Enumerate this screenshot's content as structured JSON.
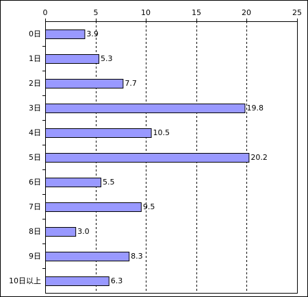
{
  "chart_data": {
    "type": "bar",
    "orientation": "horizontal",
    "categories": [
      "0日",
      "1日",
      "2日",
      "3日",
      "4日",
      "5日",
      "6日",
      "7日",
      "8日",
      "9日",
      "10日以上"
    ],
    "values": [
      3.9,
      5.3,
      7.7,
      19.8,
      10.5,
      20.2,
      5.5,
      9.5,
      3.0,
      8.3,
      6.3
    ],
    "value_labels": [
      "3.9",
      "5.3",
      "7.7",
      "19.8",
      "10.5",
      "20.2",
      "5.5",
      "9.5",
      "3.0",
      "8.3",
      "6.3"
    ],
    "xticks": [
      "0",
      "5",
      "10",
      "15",
      "20",
      "25"
    ],
    "xlim": [
      0,
      25
    ],
    "title": "",
    "xlabel": "",
    "ylabel": "",
    "grid": "vertical-dashed",
    "legend": "none",
    "colors": {
      "bar_fill": "#9999ff",
      "bar_stroke": "#000000",
      "frame": "#000000"
    }
  }
}
